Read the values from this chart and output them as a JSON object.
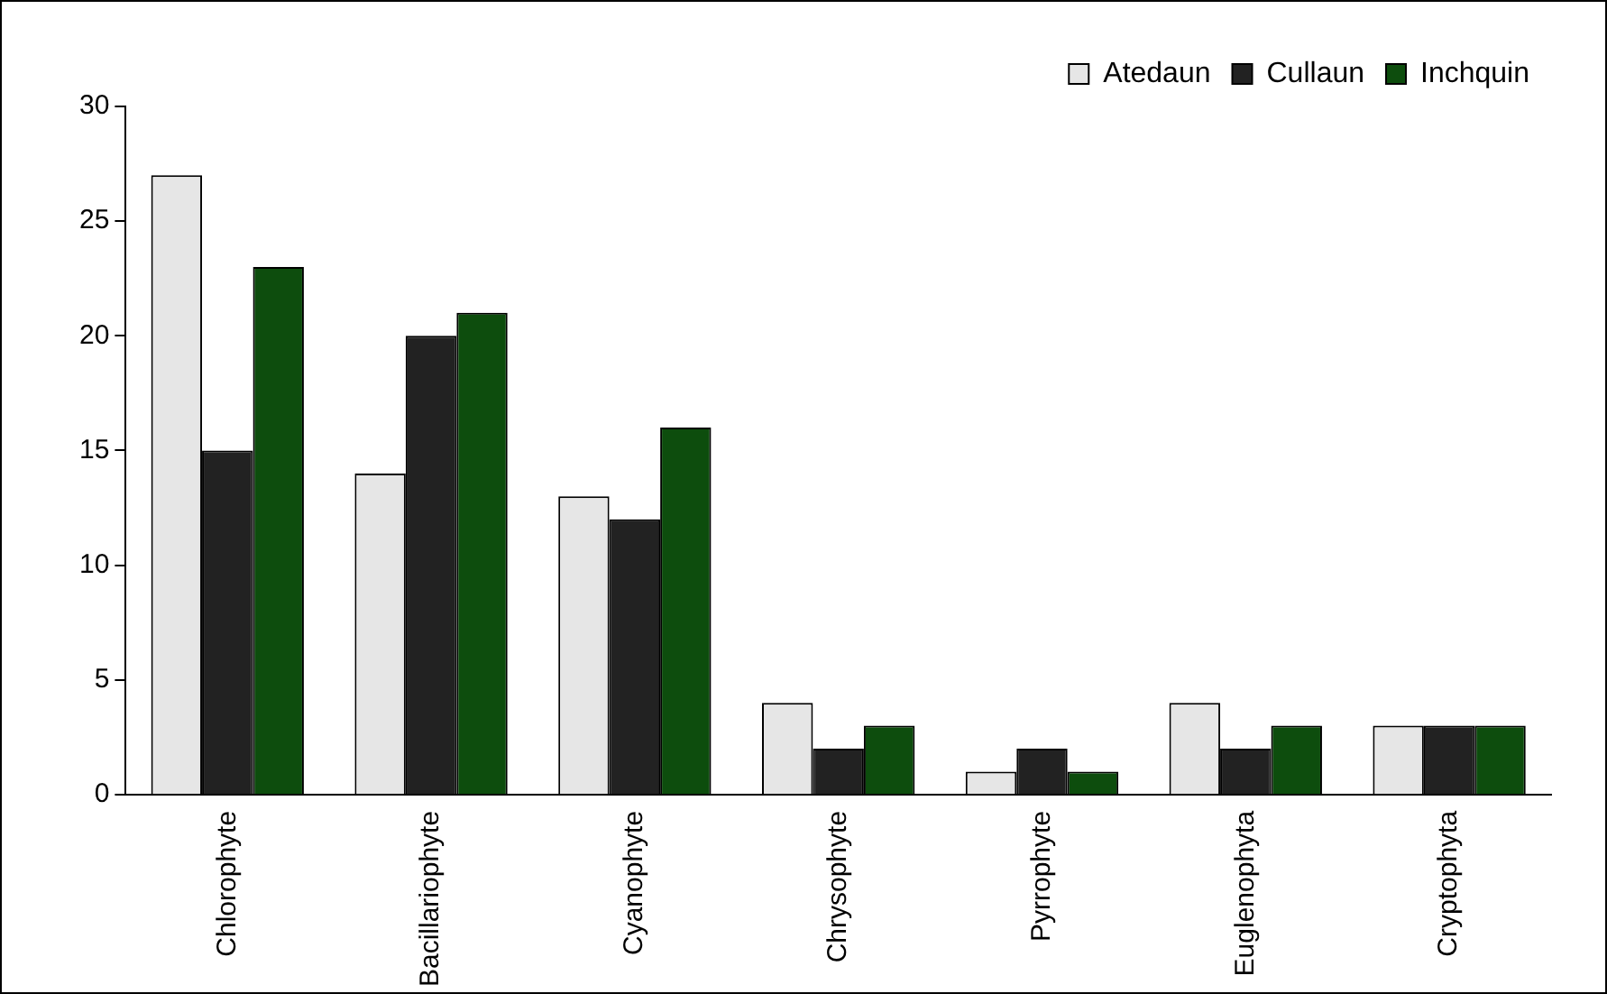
{
  "chart_data": {
    "type": "bar",
    "categories": [
      "Chlorophyte",
      "Bacillariophyte",
      "Cyanophyte",
      "Chrysophyte",
      "Pyrrophyte",
      "Euglenophyta",
      "Cryptophyta"
    ],
    "series": [
      {
        "name": "Atedaun",
        "color": "#e6e6e6",
        "values": [
          27,
          14,
          13,
          4,
          1,
          4,
          3
        ]
      },
      {
        "name": "Cullaun",
        "color": "#222222",
        "values": [
          15,
          20,
          12,
          2,
          2,
          2,
          3
        ]
      },
      {
        "name": "Inchquin",
        "color": "#0d4d0d",
        "values": [
          23,
          21,
          16,
          3,
          1,
          3,
          3
        ]
      }
    ],
    "ylim": [
      0,
      30
    ],
    "yticks": [
      0,
      5,
      10,
      15,
      20,
      25,
      30
    ],
    "grid": false,
    "legend": "top right"
  }
}
